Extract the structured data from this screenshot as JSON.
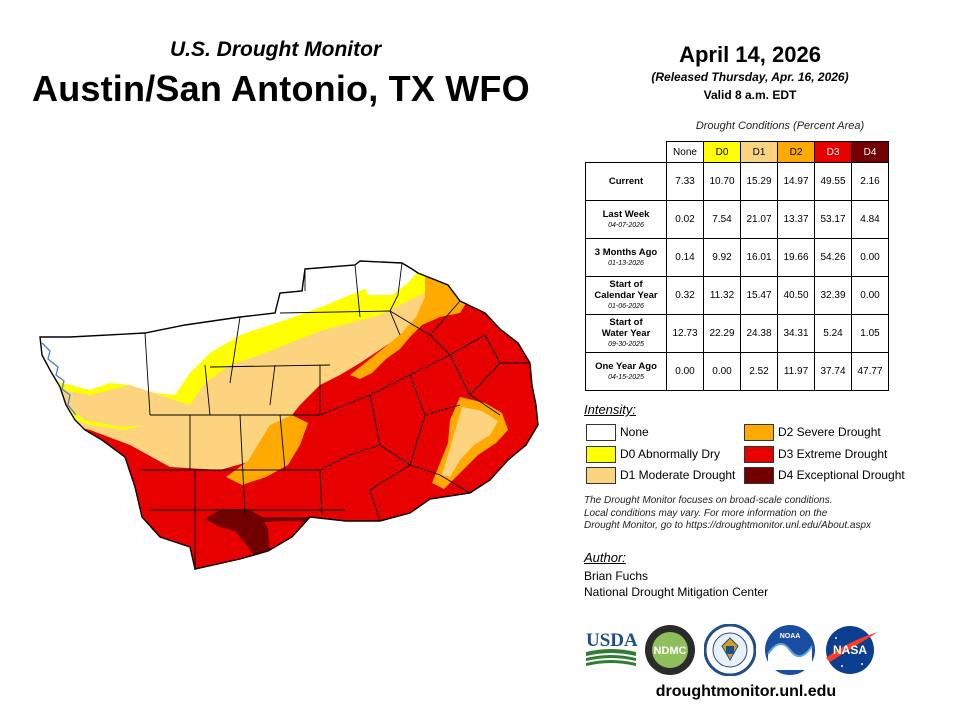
{
  "header": {
    "subtitle": "U.S. Drought Monitor",
    "title": "Austin/San Antonio, TX WFO"
  },
  "release": {
    "date": "April 14, 2026",
    "released": "(Released Thursday, Apr. 16, 2026)",
    "valid": "Valid 8 a.m. EDT"
  },
  "conditions": {
    "caption": "Drought Conditions (Percent Area)",
    "columns": [
      {
        "label": "None",
        "color": "#ffffff",
        "text_color": "#000000"
      },
      {
        "label": "D0",
        "color": "#ffff00",
        "text_color": "#000000"
      },
      {
        "label": "D1",
        "color": "#fcd37f",
        "text_color": "#000000"
      },
      {
        "label": "D2",
        "color": "#ffaa00",
        "text_color": "#000000"
      },
      {
        "label": "D3",
        "color": "#e60000",
        "text_color": "#ffffff"
      },
      {
        "label": "D4",
        "color": "#730000",
        "text_color": "#ffffff"
      }
    ],
    "rows": [
      {
        "label": "Current",
        "label2": "",
        "date": "",
        "values": [
          "7.33",
          "10.70",
          "15.29",
          "14.97",
          "49.55",
          "2.16"
        ]
      },
      {
        "label": "Last Week",
        "label2": "",
        "date": "04-07-2026",
        "values": [
          "0.02",
          "7.54",
          "21.07",
          "13.37",
          "53.17",
          "4.84"
        ]
      },
      {
        "label": "3 Months Ago",
        "label2": "",
        "date": "01-13-2026",
        "values": [
          "0.14",
          "9.92",
          "16.01",
          "19.66",
          "54.26",
          "0.00"
        ]
      },
      {
        "label": "Start of",
        "label2": "Calendar Year",
        "date": "01-06-2026",
        "values": [
          "0.32",
          "11.32",
          "15.47",
          "40.50",
          "32.39",
          "0.00"
        ]
      },
      {
        "label": "Start of",
        "label2": "Water Year",
        "date": "09-30-2025",
        "values": [
          "12.73",
          "22.29",
          "24.38",
          "34.31",
          "5.24",
          "1.05"
        ]
      },
      {
        "label": "One Year Ago",
        "label2": "",
        "date": "04-15-2025",
        "values": [
          "0.00",
          "0.00",
          "2.52",
          "11.97",
          "37.74",
          "47.77"
        ]
      }
    ]
  },
  "legend": {
    "title": "Intensity:",
    "items": [
      {
        "label": "None",
        "color": "#ffffff"
      },
      {
        "label": "D0 Abnormally Dry",
        "color": "#ffff00"
      },
      {
        "label": "D1 Moderate Drought",
        "color": "#fcd37f"
      },
      {
        "label": "D2 Severe Drought",
        "color": "#ffaa00"
      },
      {
        "label": "D3 Extreme Drought",
        "color": "#e60000"
      },
      {
        "label": "D4 Exceptional Drought",
        "color": "#730000"
      }
    ]
  },
  "disclaimer": {
    "line1": "The Drought Monitor focuses on broad-scale conditions.",
    "line2": "Local conditions may vary. For more information on the",
    "line3": "Drought Monitor, go to https://droughtmonitor.unl.edu/About.aspx"
  },
  "author": {
    "title": "Author:",
    "name": "Brian Fuchs",
    "org": "National Drought Mitigation Center"
  },
  "logos": {
    "usda": "USDA",
    "ndmc": "NDMC",
    "noaa": "NOAA",
    "nasa": "NASA"
  },
  "footer": {
    "url": "droughtmonitor.unl.edu"
  },
  "map_colors": {
    "none": "#ffffff",
    "d0": "#ffff00",
    "d1": "#fcd37f",
    "d2": "#ffaa00",
    "d3": "#e60000",
    "d4": "#730000"
  }
}
